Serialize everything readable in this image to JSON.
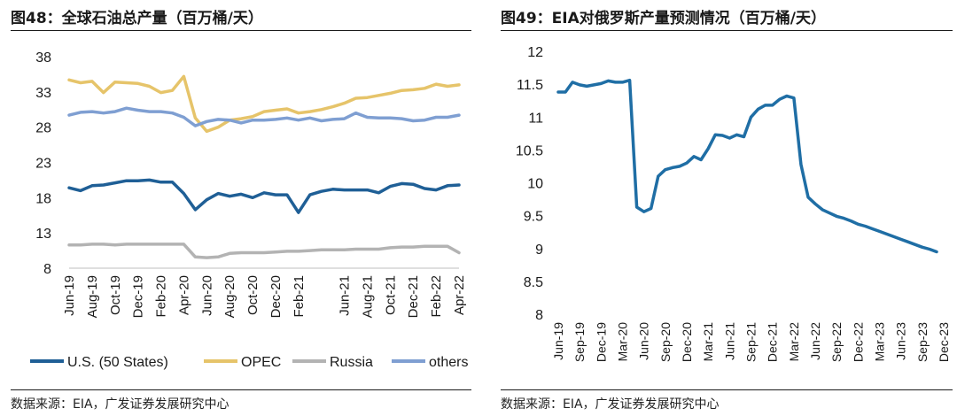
{
  "chart_data": [
    {
      "type": "line",
      "title": "图48：全球石油总产量（百万桶/天）",
      "source": "数据来源：EIA，广发证券发展研究中心",
      "ylim": [
        8,
        38
      ],
      "yticks": [
        8,
        13,
        18,
        23,
        28,
        33,
        38
      ],
      "categories": [
        "Jun-19",
        "Jul-19",
        "Aug-19",
        "Sep-19",
        "Oct-19",
        "Nov-19",
        "Dec-19",
        "Jan-20",
        "Feb-20",
        "Mar-20",
        "Apr-20",
        "May-20",
        "Jun-20",
        "Jul-20",
        "Aug-20",
        "Sep-20",
        "Oct-20",
        "Nov-20",
        "Dec-20",
        "Jan-21",
        "Feb-21",
        "Mar-21",
        "Apr-21",
        "May-21",
        "Jun-21",
        "Jul-21",
        "Aug-21",
        "Sep-21",
        "Oct-21",
        "Nov-21",
        "Dec-21",
        "Jan-22",
        "Feb-22",
        "Mar-22",
        "Apr-22"
      ],
      "xtick_labels": [
        "Jun-19",
        "Aug-19",
        "Oct-19",
        "Dec-19",
        "Feb-20",
        "Apr-20",
        "Jun-20",
        "Aug-20",
        "Oct-20",
        "Dec-20",
        "Feb-21",
        "Jun-21",
        "Aug-21",
        "Oct-21",
        "Dec-21",
        "Feb-22",
        "Apr-22"
      ],
      "series": [
        {
          "name": "U.S. (50 States)",
          "color": "#1f5f96",
          "values": [
            19.4,
            19.0,
            19.7,
            19.8,
            20.1,
            20.4,
            20.4,
            20.5,
            20.2,
            20.2,
            18.6,
            16.3,
            17.7,
            18.6,
            18.2,
            18.5,
            18.0,
            18.7,
            18.4,
            18.4,
            15.9,
            18.4,
            18.9,
            19.2,
            19.1,
            19.1,
            19.1,
            18.7,
            19.6,
            20.0,
            19.9,
            19.3,
            19.1,
            19.7,
            19.8
          ]
        },
        {
          "name": "OPEC",
          "color": "#e6c46a",
          "values": [
            34.7,
            34.3,
            34.5,
            32.9,
            34.4,
            34.3,
            34.2,
            33.8,
            32.9,
            33.2,
            35.2,
            29.3,
            27.4,
            28.0,
            29.0,
            29.2,
            29.5,
            30.2,
            30.4,
            30.6,
            30.0,
            30.2,
            30.5,
            30.9,
            31.4,
            32.1,
            32.2,
            32.5,
            32.8,
            33.2,
            33.3,
            33.5,
            34.1,
            33.8,
            34.0
          ]
        },
        {
          "name": "Russia",
          "color": "#b3b3b3",
          "values": [
            11.3,
            11.3,
            11.4,
            11.4,
            11.3,
            11.4,
            11.4,
            11.4,
            11.4,
            11.4,
            11.4,
            9.6,
            9.5,
            9.6,
            10.1,
            10.2,
            10.2,
            10.2,
            10.3,
            10.4,
            10.4,
            10.5,
            10.6,
            10.6,
            10.6,
            10.7,
            10.7,
            10.7,
            10.9,
            11.0,
            11.0,
            11.1,
            11.1,
            11.1,
            10.2
          ]
        },
        {
          "name": "others",
          "color": "#7f9fd2",
          "values": [
            29.7,
            30.1,
            30.2,
            30.0,
            30.2,
            30.7,
            30.4,
            30.2,
            30.2,
            30.0,
            29.4,
            28.2,
            28.8,
            29.1,
            29.0,
            28.6,
            29.0,
            29.0,
            29.1,
            29.3,
            29.0,
            29.3,
            28.9,
            29.1,
            29.2,
            30.0,
            29.4,
            29.3,
            29.3,
            29.2,
            28.9,
            29.0,
            29.4,
            29.4,
            29.7
          ]
        }
      ]
    },
    {
      "type": "line",
      "title": "图49：EIA对俄罗斯产量预测情况（百万桶/天）",
      "source": "数据来源：EIA，广发证券发展研究中心",
      "ylim": [
        8,
        12
      ],
      "yticks": [
        "8",
        "8.5",
        "9",
        "9.5",
        "10",
        "10.5",
        "11",
        "11.5",
        "12"
      ],
      "xtick_labels": [
        "Jun-19",
        "Sep-19",
        "Dec-19",
        "Mar-20",
        "Jun-20",
        "Sep-20",
        "Dec-20",
        "Mar-21",
        "Jun-21",
        "Sep-21",
        "Dec-21",
        "Mar-22",
        "Jun-22",
        "Sep-22",
        "Dec-22",
        "Mar-23",
        "Jun-23",
        "Sep-23",
        "Dec-23"
      ],
      "series": [
        {
          "name": "Russia",
          "color": "#1f6ea5",
          "values": [
            11.38,
            11.38,
            11.53,
            11.49,
            11.47,
            11.49,
            11.51,
            11.55,
            11.53,
            11.53,
            11.56,
            9.63,
            9.56,
            9.61,
            10.1,
            10.2,
            10.23,
            10.25,
            10.3,
            10.4,
            10.35,
            10.52,
            10.73,
            10.72,
            10.68,
            10.73,
            10.7,
            11.0,
            11.12,
            11.18,
            11.18,
            11.27,
            11.32,
            11.29,
            10.28,
            9.78,
            9.68,
            9.59,
            9.54,
            9.49,
            9.46,
            9.42,
            9.37,
            9.34,
            9.3,
            9.26,
            9.22,
            9.18,
            9.14,
            9.1,
            9.06,
            9.02,
            8.99,
            8.95
          ]
        }
      ]
    }
  ]
}
